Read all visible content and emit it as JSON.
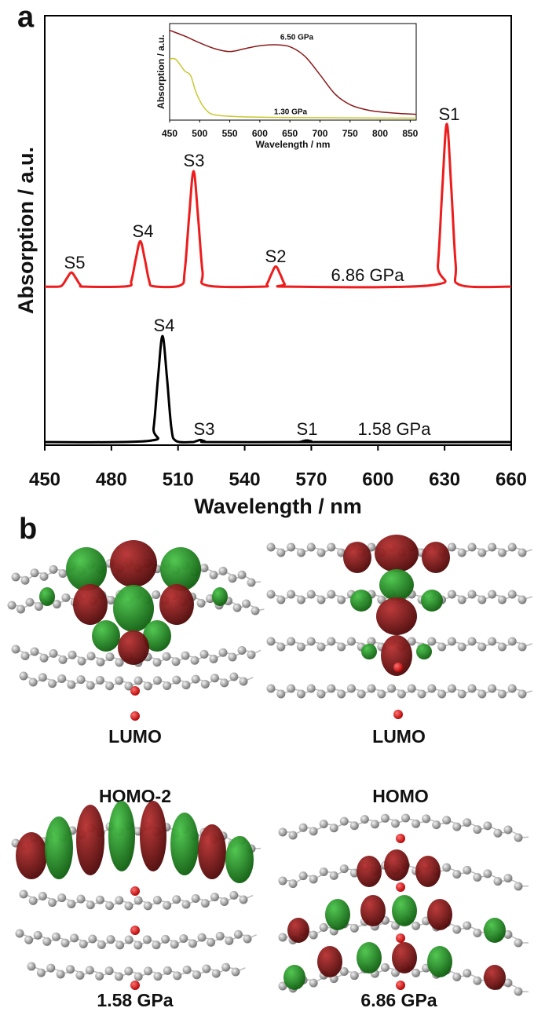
{
  "chart_data": [
    {
      "type": "line",
      "x_label": "Wavelength / nm",
      "y_label": "Absorption / a.u.",
      "xlim": [
        450,
        660
      ],
      "xticks": [
        450,
        480,
        510,
        540,
        570,
        600,
        630,
        660
      ],
      "ylim": [
        0,
        100
      ],
      "series": [
        {
          "name": "6.86 GPa",
          "color": "#ee1c1c",
          "peak_labels": [
            "S5",
            "S4",
            "S3",
            "S2",
            "S1"
          ],
          "x": [
            450,
            456,
            458,
            460,
            462,
            464,
            466,
            468,
            487,
            489,
            491,
            493,
            495,
            497,
            499,
            511,
            513,
            515,
            517,
            519,
            521,
            523,
            548,
            550,
            552,
            554,
            556,
            558,
            560,
            625,
            627,
            629,
            631,
            633,
            635,
            637,
            660
          ],
          "values": [
            36.9,
            36.9,
            37.3,
            38.9,
            40.2,
            38.9,
            37.3,
            36.9,
            37.0,
            38.3,
            43.4,
            47.5,
            43.4,
            38.3,
            37.0,
            37.2,
            40.5,
            53.3,
            63.8,
            53.3,
            40.5,
            37.2,
            36.9,
            37.5,
            39.8,
            41.6,
            39.8,
            37.5,
            36.9,
            37.3,
            42.0,
            60.0,
            74.8,
            60.0,
            42.0,
            37.3,
            36.9
          ]
        },
        {
          "name": "1.58 GPa",
          "color": "#000000",
          "peak_labels": [
            "S4",
            "S3",
            "S1"
          ],
          "x": [
            450,
            497,
            499,
            501,
            503,
            505,
            507,
            509,
            516,
            518,
            520,
            522,
            524,
            564,
            566,
            568,
            570,
            572,
            660
          ],
          "values": [
            0.7,
            1.0,
            4.0,
            15.8,
            25.4,
            15.8,
            4.0,
            1.0,
            0.7,
            0.9,
            1.2,
            0.9,
            0.7,
            0.7,
            0.9,
            1.1,
            0.9,
            0.7,
            0.7
          ]
        }
      ]
    },
    {
      "type": "line",
      "x_label": "Wavelength / nm",
      "y_label": "Absorption / a.u.",
      "xlim": [
        450,
        860
      ],
      "xticks": [
        450,
        500,
        550,
        600,
        650,
        700,
        750,
        800,
        850
      ],
      "ylim": [
        0,
        1
      ],
      "series": [
        {
          "name": "6.50 GPa",
          "color": "#8b1a1a",
          "x": [
            450,
            475,
            500,
            525,
            550,
            575,
            600,
            625,
            650,
            675,
            700,
            725,
            750,
            775,
            800,
            830,
            860
          ],
          "values": [
            0.93,
            0.87,
            0.8,
            0.74,
            0.71,
            0.74,
            0.77,
            0.78,
            0.76,
            0.66,
            0.47,
            0.27,
            0.16,
            0.11,
            0.085,
            0.07,
            0.06
          ]
        },
        {
          "name": "1.30 GPa",
          "color": "#c8c832",
          "x": [
            450,
            460,
            475,
            485,
            495,
            510,
            530,
            600,
            700,
            860
          ],
          "values": [
            0.63,
            0.63,
            0.51,
            0.46,
            0.27,
            0.11,
            0.05,
            0.03,
            0.025,
            0.02
          ]
        }
      ]
    }
  ],
  "panel_labels": [
    "a",
    "b"
  ],
  "orbital_labels": [
    "LUMO",
    "LUMO",
    "HOMO-2",
    "HOMO"
  ],
  "pressure_labels": [
    "1.58 GPa",
    "6.86 GPa"
  ]
}
